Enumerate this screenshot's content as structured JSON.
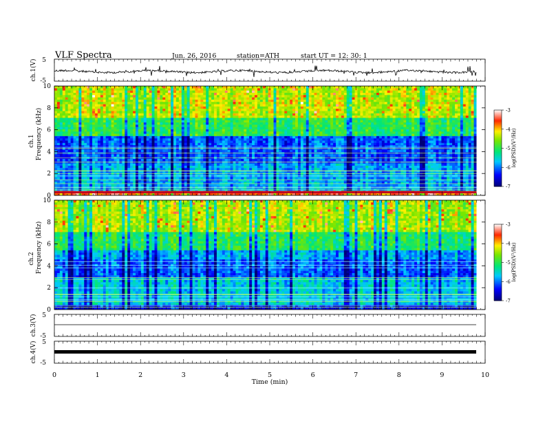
{
  "header": {
    "title": "VLF  Spectra",
    "date": "Jun. 26, 2016",
    "station": "station=ATH",
    "start": "start  UT  =    12: 30: 1"
  },
  "chart_data": [
    {
      "type": "line",
      "id": "ch1",
      "ylabel": "ch.1(V)",
      "ylim": [
        -5,
        5
      ],
      "yticks": [
        "5",
        "-5"
      ],
      "xlim": [
        0,
        10
      ]
    },
    {
      "type": "heatmap",
      "id": "spec1",
      "ylabel_top": "ch.1",
      "ylabel": "Frequency  (kHz)",
      "ylim": [
        0,
        10
      ],
      "yticks": [
        "0",
        "2",
        "4",
        "6",
        "8",
        "10"
      ],
      "xlim": [
        0,
        10
      ],
      "colorbar": {
        "label": "log(PSD)(V²/Hz)",
        "range": [
          -7,
          -3
        ],
        "ticks": [
          "-3",
          "-4",
          "-5",
          "-6",
          "-7"
        ]
      }
    },
    {
      "type": "heatmap",
      "id": "spec2",
      "ylabel_top": "ch.2",
      "ylabel": "Frequency  (kHz)",
      "ylim": [
        0,
        10
      ],
      "yticks": [
        "0",
        "2",
        "4",
        "6",
        "8",
        "10"
      ],
      "xlim": [
        0,
        10
      ],
      "colorbar": {
        "label": "log(PSD)(V²/Hz)",
        "range": [
          -7,
          -3
        ],
        "ticks": [
          "-3",
          "-4",
          "-5",
          "-6",
          "-7"
        ]
      }
    },
    {
      "type": "line",
      "id": "ch3",
      "ylabel": "ch.3(V)",
      "ylim": [
        -5,
        5
      ],
      "yticks": [
        "5",
        "-5"
      ],
      "xlim": [
        0,
        10
      ]
    },
    {
      "type": "line",
      "id": "ch4",
      "ylabel": "ch.4(V)",
      "ylim": [
        -5,
        5
      ],
      "yticks": [
        "5",
        "-5"
      ],
      "xlim": [
        0,
        10
      ]
    }
  ],
  "xaxis": {
    "label": "Time  (min)",
    "ticks": [
      "0",
      "1",
      "2",
      "3",
      "4",
      "5",
      "6",
      "7",
      "8",
      "9",
      "10"
    ],
    "data_end": 9.8
  }
}
